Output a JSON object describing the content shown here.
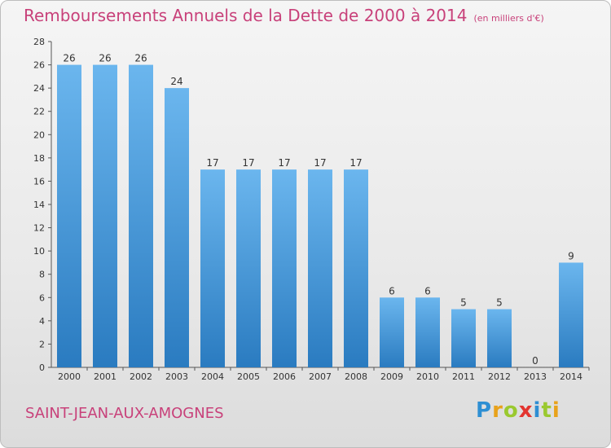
{
  "header": {
    "title": "Remboursements Annuels de la Dette de 2000 à 2014",
    "unit": "(en milliers d'€)"
  },
  "footer": {
    "commune": "SAINT-JEAN-AUX-AMOGNES",
    "logo_letters": [
      {
        "char": "P",
        "color": "#2e8fd3"
      },
      {
        "char": "r",
        "color": "#e8a21b"
      },
      {
        "char": "o",
        "color": "#9ac92f"
      },
      {
        "char": "x",
        "color": "#e3342f"
      },
      {
        "char": "i",
        "color": "#2e8fd3"
      },
      {
        "char": "t",
        "color": "#9ac92f"
      },
      {
        "char": "i",
        "color": "#e8a21b"
      }
    ]
  },
  "colors": {
    "bar_light": "#6bb6ee",
    "bar_dark": "#2a7bc0",
    "title": "#c8417a"
  },
  "chart_data": {
    "type": "bar",
    "title": "Remboursements Annuels de la Dette de 2000 à 2014",
    "subtitle": "(en milliers d'€)",
    "xlabel": "",
    "ylabel": "",
    "categories": [
      "2000",
      "2001",
      "2002",
      "2003",
      "2004",
      "2005",
      "2006",
      "2007",
      "2008",
      "2009",
      "2010",
      "2011",
      "2012",
      "2013",
      "2014"
    ],
    "values": [
      26,
      26,
      26,
      24,
      17,
      17,
      17,
      17,
      17,
      6,
      6,
      5,
      5,
      0,
      9
    ],
    "ylim": [
      0,
      28
    ],
    "yticks": [
      0,
      2,
      4,
      6,
      8,
      10,
      12,
      14,
      16,
      18,
      20,
      22,
      24,
      26,
      28
    ],
    "grid": false,
    "legend": "none"
  }
}
